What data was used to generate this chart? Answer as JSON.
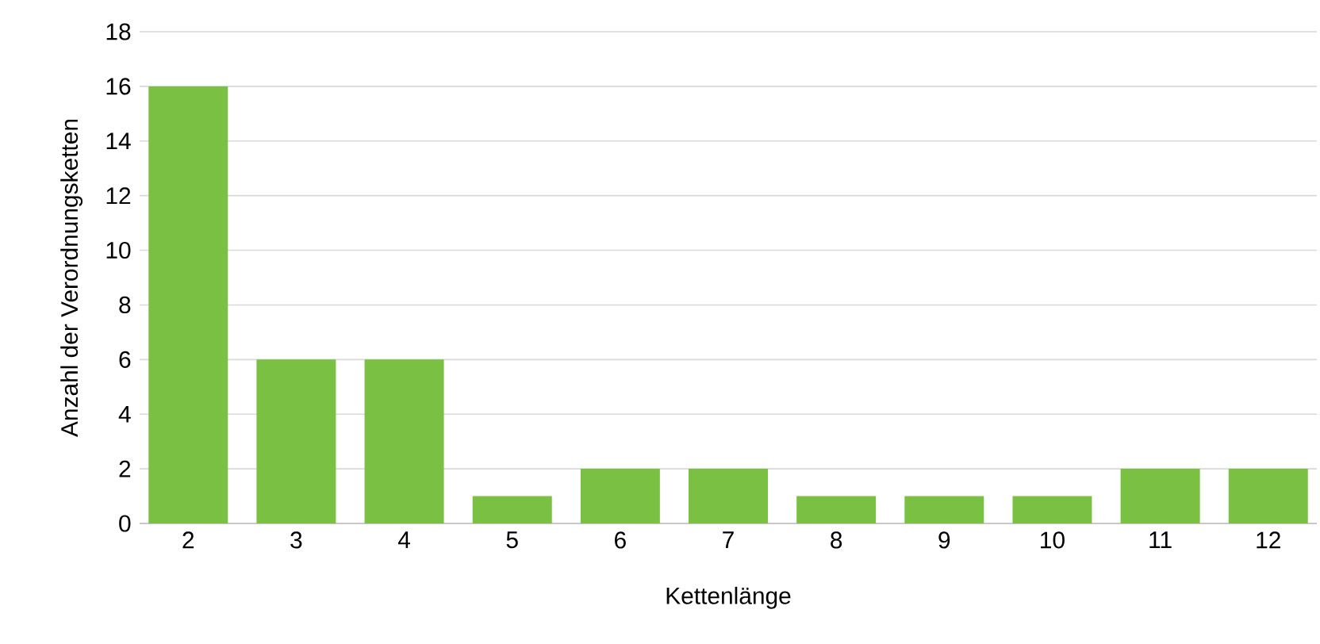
{
  "chart_data": {
    "type": "bar",
    "xlabel": "Kettenlänge",
    "ylabel": "Anzahl der Verordnungsketten",
    "categories": [
      "2",
      "3",
      "4",
      "5",
      "6",
      "7",
      "8",
      "9",
      "10",
      "11",
      "12"
    ],
    "values": [
      16,
      6,
      6,
      1,
      2,
      2,
      1,
      1,
      1,
      2,
      2
    ],
    "color": "#7ac143",
    "ylim": [
      0,
      18
    ],
    "yticks": [
      0,
      2,
      4,
      6,
      8,
      10,
      12,
      14,
      16,
      18
    ],
    "grid": "y"
  }
}
